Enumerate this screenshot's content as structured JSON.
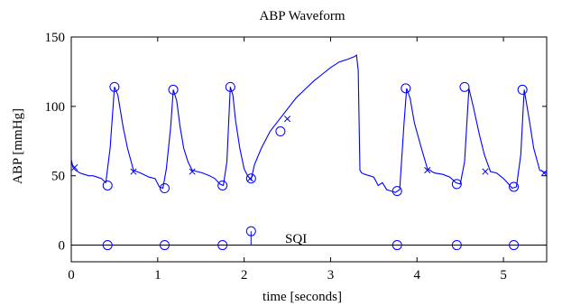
{
  "chart_data": {
    "type": "line",
    "title": "ABP Waveform",
    "xlabel": "time [seconds]",
    "ylabel": "ABP [mmHg]",
    "xlim": [
      0,
      5.5
    ],
    "ylim": [
      -12,
      150
    ],
    "grid": false,
    "x_ticks": [
      0,
      1,
      2,
      3,
      4,
      5
    ],
    "y_ticks": [
      0,
      50,
      100,
      150
    ],
    "annotations": [
      {
        "text": "SQI",
        "x": 2.6,
        "y": 1
      }
    ],
    "line_color": "#0000ff",
    "series": [
      {
        "role": "abp-waveform",
        "x": [
          0,
          0.02,
          0.05,
          0.1,
          0.15,
          0.2,
          0.25,
          0.3,
          0.35,
          0.4,
          0.45,
          0.5,
          0.54,
          0.6,
          0.65,
          0.72,
          0.8,
          0.9,
          0.97,
          1.02,
          1.06,
          1.1,
          1.15,
          1.18,
          1.22,
          1.26,
          1.3,
          1.35,
          1.4,
          1.46,
          1.52,
          1.6,
          1.66,
          1.72,
          1.76,
          1.8,
          1.84,
          1.87,
          1.9,
          1.95,
          2.0,
          2.04,
          2.08,
          2.12,
          2.2,
          2.3,
          2.4,
          2.5,
          2.6,
          2.7,
          2.8,
          2.9,
          3.0,
          3.1,
          3.2,
          3.28,
          3.3,
          3.32,
          3.34,
          3.36,
          3.4,
          3.5,
          3.55,
          3.6,
          3.65,
          3.7,
          3.75,
          3.8,
          3.85,
          3.88,
          3.92,
          3.97,
          4.05,
          4.12,
          4.2,
          4.3,
          4.38,
          4.45,
          4.5,
          4.55,
          4.6,
          4.65,
          4.72,
          4.78,
          4.85,
          4.92,
          5.0,
          5.06,
          5.1,
          5.15,
          5.2,
          5.24,
          5.3,
          5.35,
          5.42,
          5.5
        ],
        "y": [
          62,
          56,
          54,
          52,
          51,
          50,
          50,
          49,
          48,
          45,
          70,
          114,
          108,
          85,
          70,
          54,
          52,
          49,
          48,
          42,
          41,
          55,
          85,
          112,
          104,
          85,
          70,
          60,
          54,
          53,
          52,
          50,
          48,
          44,
          43,
          60,
          114,
          108,
          90,
          70,
          55,
          50,
          47,
          58,
          70,
          82,
          90,
          98,
          106,
          112,
          118,
          123,
          128,
          132,
          134,
          136,
          137,
          126,
          54,
          52,
          51,
          49,
          43,
          45,
          40,
          39,
          38,
          40,
          88,
          113,
          106,
          88,
          70,
          55,
          52,
          51,
          49,
          45,
          44,
          60,
          113,
          100,
          80,
          65,
          53,
          52,
          48,
          44,
          41,
          42,
          65,
          112,
          90,
          70,
          54,
          52
        ]
      }
    ],
    "circle_markers": [
      {
        "x": 0.42,
        "y": 43
      },
      {
        "x": 0.5,
        "y": 114
      },
      {
        "x": 1.08,
        "y": 41
      },
      {
        "x": 1.18,
        "y": 112
      },
      {
        "x": 1.75,
        "y": 43
      },
      {
        "x": 1.84,
        "y": 114
      },
      {
        "x": 2.08,
        "y": 48
      },
      {
        "x": 2.42,
        "y": 82
      },
      {
        "x": 3.77,
        "y": 39
      },
      {
        "x": 3.87,
        "y": 113
      },
      {
        "x": 4.46,
        "y": 44
      },
      {
        "x": 4.55,
        "y": 114
      },
      {
        "x": 5.12,
        "y": 42
      },
      {
        "x": 5.22,
        "y": 112
      }
    ],
    "x_markers": [
      {
        "x": 0.04,
        "y": 56
      },
      {
        "x": 0.72,
        "y": 53
      },
      {
        "x": 1.4,
        "y": 53
      },
      {
        "x": 2.07,
        "y": 48
      },
      {
        "x": 2.5,
        "y": 91
      },
      {
        "x": 4.12,
        "y": 54
      },
      {
        "x": 4.79,
        "y": 53
      },
      {
        "x": 5.47,
        "y": 52
      }
    ],
    "sqi": {
      "baseline": 0,
      "circles": [
        {
          "x": 0.42,
          "y": 0
        },
        {
          "x": 1.08,
          "y": 0
        },
        {
          "x": 1.75,
          "y": 0
        },
        {
          "x": 2.08,
          "y": 10
        },
        {
          "x": 3.77,
          "y": 0
        },
        {
          "x": 4.46,
          "y": 0
        },
        {
          "x": 5.12,
          "y": 0
        }
      ]
    }
  }
}
